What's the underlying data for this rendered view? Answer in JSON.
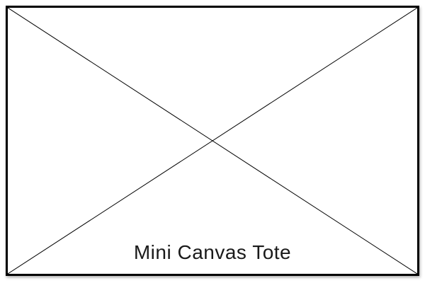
{
  "placeholder": {
    "icon": "image-placeholder-cross",
    "border_color": "#000000",
    "line_color": "#000000",
    "background": "#ffffff",
    "caption": "Mini Canvas Tote"
  }
}
